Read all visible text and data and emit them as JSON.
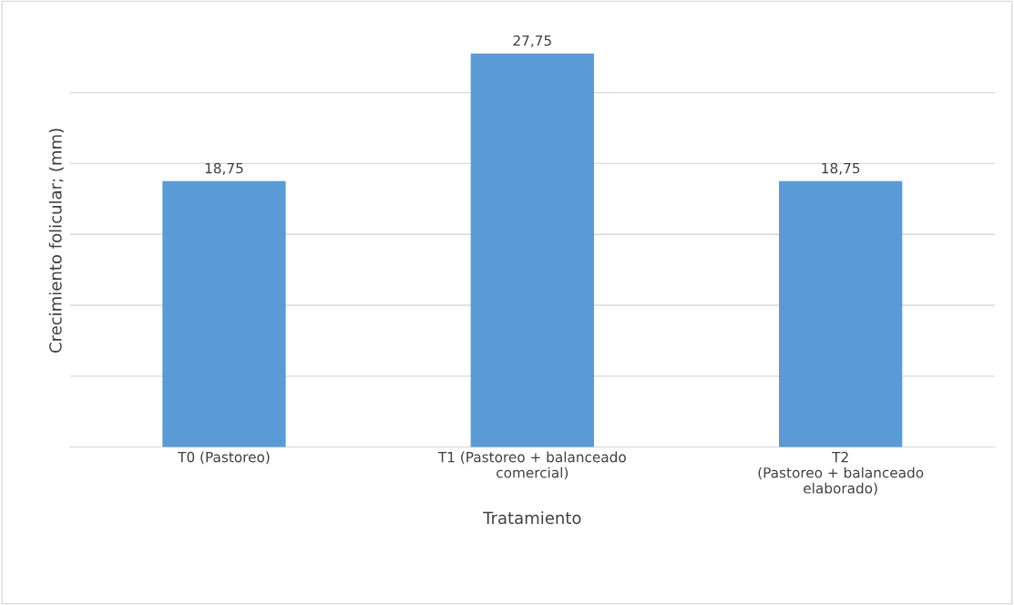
{
  "chart_data": {
    "type": "bar",
    "categories": [
      "T0 (Pastoreo)",
      "T1 (Pastoreo + balanceado\ncomercial)",
      "T2\n(Pastoreo + balanceado\nelaborado)"
    ],
    "values": [
      18.75,
      27.75,
      18.75
    ],
    "value_labels": [
      "18,75",
      "27,75",
      "18,75"
    ],
    "color": "#5b9bd5",
    "xlabel": "Tratamiento",
    "ylabel": "Crecimiento folicular; (mm)",
    "tick_labels": "x",
    "grid": "y"
  }
}
